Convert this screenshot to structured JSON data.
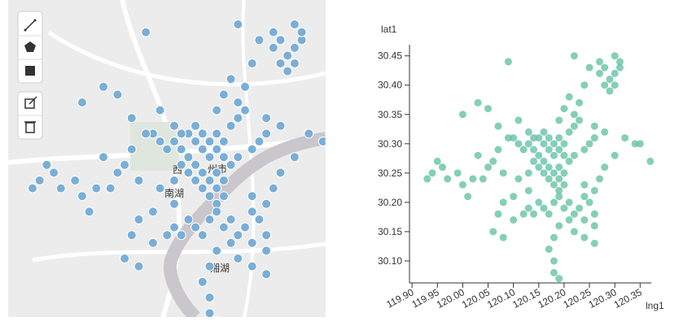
{
  "map": {
    "labels": [
      "州市",
      "南湖",
      "湘湖",
      "西"
    ],
    "marker_color": "#7aaed6"
  },
  "chart_data": {
    "type": "scatter",
    "x_label": "lng1",
    "y_label": "lat1",
    "color": "#66c2a5",
    "x": [
      120.13,
      120.14,
      120.15,
      120.16,
      120.17,
      120.18,
      120.15,
      120.16,
      120.17,
      120.18,
      120.19,
      120.14,
      120.12,
      120.11,
      120.1,
      120.13,
      120.16,
      120.19,
      120.2,
      120.21,
      120.22,
      120.23,
      120.17,
      120.18,
      120.19,
      120.18,
      120.19,
      120.2,
      120.17,
      120.19,
      120.2,
      120.16,
      120.15,
      120.21,
      120.22,
      120.24,
      120.25,
      120.26,
      120.2,
      120.14,
      120.12,
      120.13,
      120.14,
      120.15,
      120.16,
      120.17,
      120.18,
      120.19,
      120.2,
      120.21,
      120.22,
      120.23,
      120.24,
      120.25,
      120.24,
      120.26,
      120.21,
      120.19,
      120.18,
      120.17,
      120.18,
      120.18,
      120.19,
      120.24,
      120.26,
      120.22,
      119.93,
      119.94,
      119.95,
      119.96,
      119.97,
      119.99,
      120.0,
      120.02,
      120.04,
      120.05,
      120.06,
      120.08,
      120.03,
      120.01,
      120.0,
      120.03,
      120.05,
      120.07,
      120.09,
      120.11,
      120.09,
      120.07,
      120.27,
      120.28,
      120.29,
      120.3,
      120.31,
      120.3,
      120.29,
      120.31,
      120.28,
      120.3,
      120.27,
      120.25,
      120.24,
      120.22,
      120.21,
      120.2,
      120.22,
      120.19,
      120.23,
      120.26,
      120.28,
      120.32,
      120.34,
      120.35,
      120.37,
      120.3,
      120.28,
      120.27,
      120.26,
      120.24,
      120.26,
      120.1,
      120.08,
      120.07,
      120.06,
      120.08,
      120.1,
      120.13,
      120.11,
      120.13
    ],
    "y": [
      30.3,
      30.29,
      30.31,
      30.3,
      30.29,
      30.3,
      30.28,
      30.27,
      30.31,
      30.28,
      30.29,
      30.31,
      30.29,
      30.3,
      30.31,
      30.32,
      30.32,
      30.31,
      30.3,
      30.32,
      30.33,
      30.34,
      30.26,
      30.25,
      30.24,
      30.23,
      30.26,
      30.25,
      30.24,
      30.22,
      30.23,
      30.25,
      30.26,
      30.27,
      30.28,
      30.29,
      30.3,
      30.31,
      30.28,
      30.27,
      30.18,
      30.19,
      30.18,
      30.2,
      30.19,
      30.18,
      30.2,
      30.21,
      30.19,
      30.2,
      30.18,
      30.19,
      30.21,
      30.2,
      30.17,
      30.18,
      30.17,
      30.16,
      30.14,
      30.12,
      30.1,
      30.08,
      30.07,
      30.14,
      30.13,
      30.15,
      30.24,
      30.25,
      30.27,
      30.26,
      30.24,
      30.25,
      30.23,
      30.24,
      30.24,
      30.26,
      30.27,
      30.25,
      30.28,
      30.21,
      30.35,
      30.37,
      30.36,
      30.33,
      30.44,
      30.34,
      30.31,
      30.29,
      30.42,
      30.43,
      30.41,
      30.42,
      30.43,
      30.4,
      30.39,
      30.44,
      30.4,
      30.45,
      30.44,
      30.43,
      30.4,
      30.45,
      30.38,
      30.36,
      30.35,
      30.34,
      30.37,
      30.33,
      30.32,
      30.31,
      30.3,
      30.3,
      30.27,
      30.28,
      30.26,
      30.24,
      30.22,
      30.23,
      30.16,
      30.21,
      30.2,
      30.18,
      30.15,
      30.14,
      30.17,
      30.22,
      30.24,
      30.25
    ],
    "xlim": [
      119.895,
      120.372
    ],
    "ylim": [
      30.0625,
      30.469
    ],
    "xticks": [
      {
        "value": 119.9,
        "label": "119.90"
      },
      119.95,
      {
        "value": 120,
        "label": "120.00"
      },
      120.05,
      {
        "value": 120.1,
        "label": "120.10"
      },
      120.15,
      {
        "value": 120.2,
        "label": "120.20"
      },
      120.25,
      {
        "value": 120.3,
        "label": "120.30"
      },
      120.35
    ],
    "yticks": [
      {
        "value": 30.1,
        "label": "30.10"
      },
      30.15,
      {
        "value": 30.2,
        "label": "30.20"
      },
      30.25,
      {
        "value": 30.3,
        "label": "30.30"
      },
      30.35,
      {
        "value": 30.4,
        "label": "30.40"
      },
      30.45
    ]
  }
}
